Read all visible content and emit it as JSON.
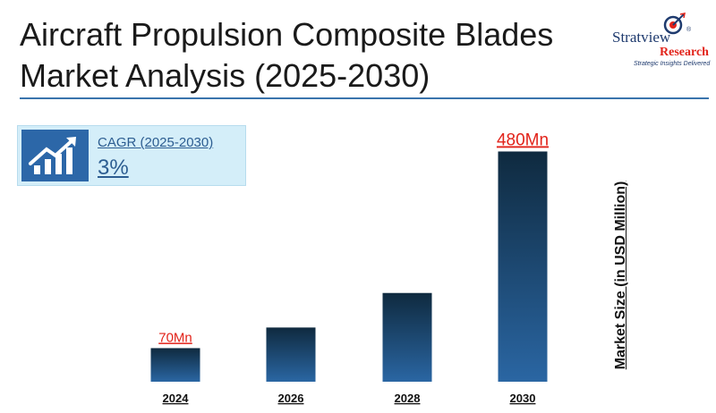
{
  "header": {
    "title": "Aircraft Propulsion Composite Blades Market Analysis (2025-2030)"
  },
  "logo": {
    "brand": "Stratview",
    "research": "Research",
    "tagline": "Strategic Insights Delivered",
    "reg_mark": "®"
  },
  "cagr": {
    "label": "CAGR (2025-2030)",
    "value": "3%",
    "icon": "growth-chart-icon"
  },
  "colors": {
    "bar_top": "#0f2a3f",
    "bar_bottom": "#2a66a3",
    "data_label": "#e2231a",
    "rule": "#3a74ad"
  },
  "chart_data": {
    "type": "bar",
    "categories": [
      "2024",
      "2026",
      "2028",
      "2030"
    ],
    "values": [
      70,
      113,
      185,
      480
    ],
    "data_labels": [
      "70Mn",
      "",
      "",
      "480Mn"
    ],
    "title": "",
    "xlabel": "",
    "ylabel": "Market Size (in USD Million)",
    "ylim": [
      0,
      520
    ],
    "grid": false,
    "legend": "none"
  }
}
